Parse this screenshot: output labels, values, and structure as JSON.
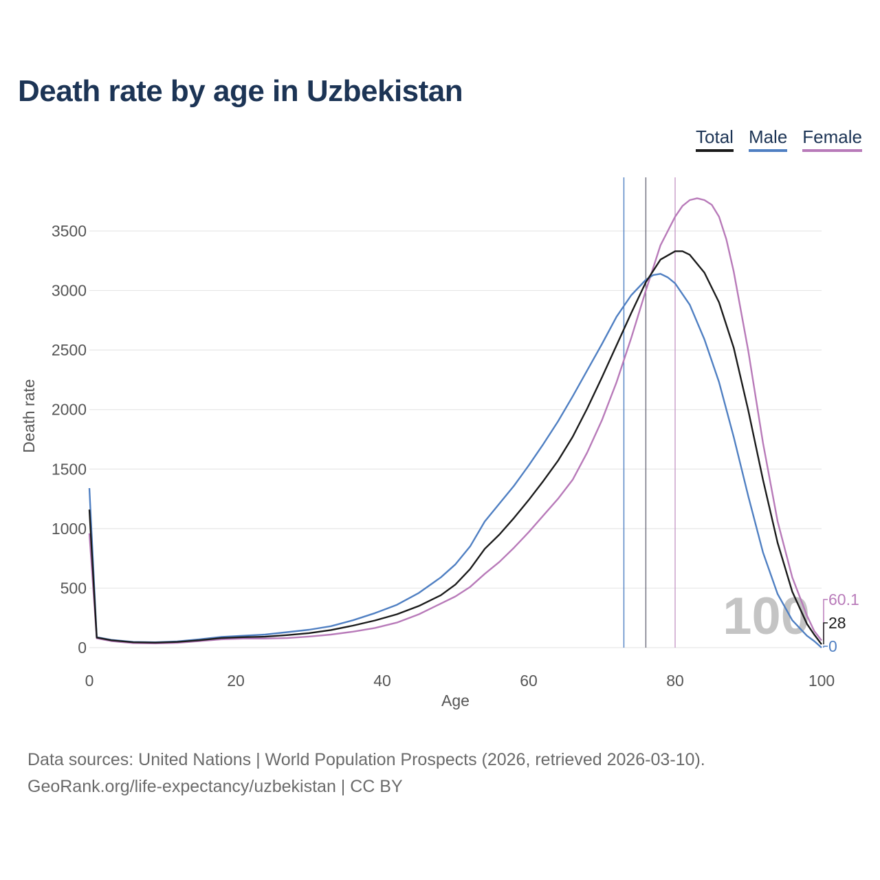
{
  "title": "Death rate by age in Uzbekistan",
  "legend": [
    {
      "key": "total",
      "label": "Total",
      "color": "#1a1a1a"
    },
    {
      "key": "male",
      "label": "Male",
      "color": "#4f7fc2"
    },
    {
      "key": "female",
      "label": "Female",
      "color": "#b87ab9"
    }
  ],
  "chart_data": {
    "type": "line",
    "title": "Death rate by age in Uzbekistan",
    "xlabel": "Age",
    "ylabel": "Death rate",
    "xlim": [
      0,
      100
    ],
    "ylim": [
      0,
      3900
    ],
    "x_ticks": [
      0,
      20,
      40,
      60,
      80,
      100
    ],
    "y_ticks": [
      0,
      500,
      1000,
      1500,
      2000,
      2500,
      3000,
      3500
    ],
    "highlight_age_label": "100",
    "life_expectancy_lines": [
      {
        "series": "male",
        "age": 73
      },
      {
        "series": "total",
        "age": 76
      },
      {
        "series": "female",
        "age": 80
      }
    ],
    "end_labels": [
      {
        "series": "female",
        "text": "60.1",
        "value": 60.1
      },
      {
        "series": "total",
        "text": "28",
        "value": 28
      },
      {
        "series": "male",
        "text": "0",
        "value": 0
      }
    ],
    "series": [
      {
        "name": "Total",
        "key": "total",
        "color": "#1a1a1a",
        "points": [
          [
            0,
            1160
          ],
          [
            1,
            85
          ],
          [
            3,
            62
          ],
          [
            6,
            45
          ],
          [
            9,
            42
          ],
          [
            12,
            48
          ],
          [
            15,
            62
          ],
          [
            18,
            80
          ],
          [
            21,
            88
          ],
          [
            24,
            92
          ],
          [
            27,
            105
          ],
          [
            30,
            122
          ],
          [
            33,
            148
          ],
          [
            36,
            185
          ],
          [
            39,
            228
          ],
          [
            42,
            280
          ],
          [
            45,
            350
          ],
          [
            48,
            440
          ],
          [
            50,
            530
          ],
          [
            52,
            660
          ],
          [
            54,
            830
          ],
          [
            56,
            950
          ],
          [
            58,
            1090
          ],
          [
            60,
            1240
          ],
          [
            62,
            1400
          ],
          [
            64,
            1570
          ],
          [
            66,
            1770
          ],
          [
            68,
            2010
          ],
          [
            70,
            2270
          ],
          [
            72,
            2540
          ],
          [
            74,
            2810
          ],
          [
            76,
            3070
          ],
          [
            78,
            3260
          ],
          [
            80,
            3330
          ],
          [
            81,
            3330
          ],
          [
            82,
            3300
          ],
          [
            84,
            3150
          ],
          [
            86,
            2900
          ],
          [
            88,
            2520
          ],
          [
            90,
            1990
          ],
          [
            92,
            1410
          ],
          [
            94,
            880
          ],
          [
            96,
            470
          ],
          [
            98,
            200
          ],
          [
            99,
            110
          ],
          [
            100,
            28
          ]
        ]
      },
      {
        "name": "Male",
        "key": "male",
        "color": "#4f7fc2",
        "points": [
          [
            0,
            1340
          ],
          [
            1,
            88
          ],
          [
            3,
            65
          ],
          [
            6,
            48
          ],
          [
            9,
            45
          ],
          [
            12,
            52
          ],
          [
            15,
            70
          ],
          [
            18,
            90
          ],
          [
            21,
            100
          ],
          [
            24,
            110
          ],
          [
            27,
            130
          ],
          [
            30,
            150
          ],
          [
            33,
            180
          ],
          [
            36,
            230
          ],
          [
            39,
            290
          ],
          [
            42,
            360
          ],
          [
            45,
            460
          ],
          [
            48,
            590
          ],
          [
            50,
            700
          ],
          [
            52,
            850
          ],
          [
            54,
            1060
          ],
          [
            56,
            1210
          ],
          [
            58,
            1360
          ],
          [
            60,
            1530
          ],
          [
            62,
            1710
          ],
          [
            64,
            1900
          ],
          [
            66,
            2110
          ],
          [
            68,
            2330
          ],
          [
            70,
            2550
          ],
          [
            72,
            2780
          ],
          [
            74,
            2960
          ],
          [
            76,
            3090
          ],
          [
            77,
            3130
          ],
          [
            78,
            3140
          ],
          [
            79,
            3110
          ],
          [
            80,
            3060
          ],
          [
            82,
            2880
          ],
          [
            84,
            2590
          ],
          [
            86,
            2230
          ],
          [
            88,
            1770
          ],
          [
            90,
            1270
          ],
          [
            92,
            800
          ],
          [
            94,
            450
          ],
          [
            96,
            230
          ],
          [
            98,
            100
          ],
          [
            99,
            55
          ],
          [
            100,
            0
          ]
        ]
      },
      {
        "name": "Female",
        "key": "female",
        "color": "#b87ab9",
        "points": [
          [
            0,
            960
          ],
          [
            1,
            78
          ],
          [
            3,
            55
          ],
          [
            6,
            38
          ],
          [
            9,
            35
          ],
          [
            12,
            40
          ],
          [
            15,
            55
          ],
          [
            18,
            70
          ],
          [
            21,
            76
          ],
          [
            24,
            76
          ],
          [
            27,
            80
          ],
          [
            30,
            93
          ],
          [
            33,
            110
          ],
          [
            36,
            134
          ],
          [
            39,
            165
          ],
          [
            42,
            210
          ],
          [
            45,
            280
          ],
          [
            48,
            370
          ],
          [
            50,
            430
          ],
          [
            52,
            510
          ],
          [
            54,
            620
          ],
          [
            56,
            720
          ],
          [
            58,
            840
          ],
          [
            60,
            970
          ],
          [
            62,
            1110
          ],
          [
            64,
            1250
          ],
          [
            66,
            1410
          ],
          [
            68,
            1640
          ],
          [
            70,
            1910
          ],
          [
            72,
            2230
          ],
          [
            74,
            2600
          ],
          [
            76,
            3000
          ],
          [
            78,
            3380
          ],
          [
            80,
            3620
          ],
          [
            81,
            3710
          ],
          [
            82,
            3760
          ],
          [
            83,
            3775
          ],
          [
            84,
            3760
          ],
          [
            85,
            3720
          ],
          [
            86,
            3620
          ],
          [
            87,
            3430
          ],
          [
            88,
            3160
          ],
          [
            90,
            2490
          ],
          [
            92,
            1720
          ],
          [
            94,
            1060
          ],
          [
            96,
            590
          ],
          [
            98,
            270
          ],
          [
            99,
            140
          ],
          [
            100,
            60.1
          ]
        ]
      }
    ]
  },
  "footer": {
    "line1": "Data sources: United Nations | World Population Prospects (2026, retrieved 2026-03-10).",
    "line2": "GeoRank.org/life-expectancy/uzbekistan | CC BY"
  }
}
